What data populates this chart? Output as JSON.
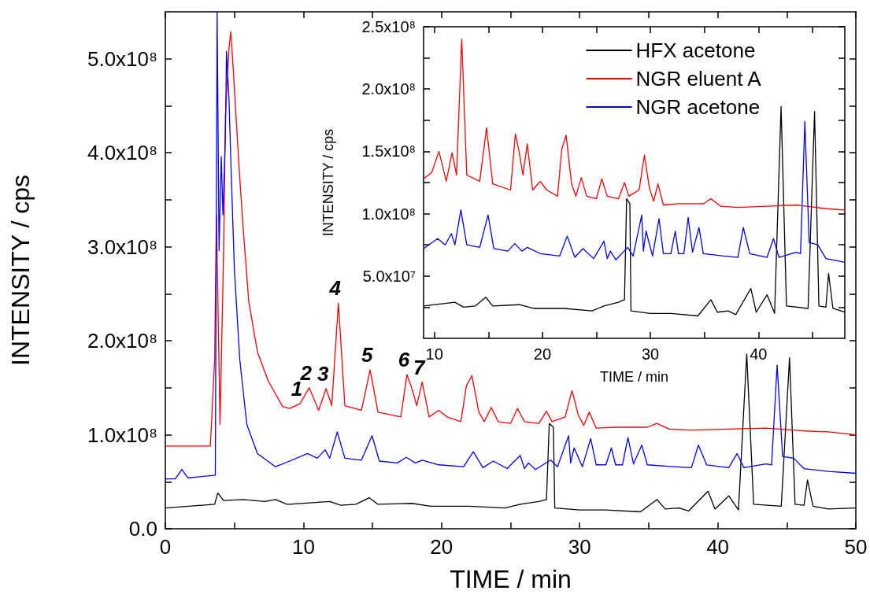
{
  "chart_data": [
    {
      "type": "line",
      "xlabel": "TIME / min",
      "ylabel": "INTENSITY / cps",
      "xlim": [
        0,
        50
      ],
      "xticks": [
        0,
        {
          "value": 5,
          "label": null
        },
        10,
        {
          "value": 15,
          "label": null
        },
        20,
        {
          "value": 25,
          "label": null
        },
        30,
        {
          "value": 35,
          "label": null
        },
        40,
        {
          "value": 45,
          "label": null
        },
        50
      ],
      "ylim": [
        0,
        550000000.0
      ],
      "yticks": [
        {
          "value": 0,
          "label": "0.0"
        },
        {
          "value": 50000000.0,
          "label": null
        },
        {
          "value": 100000000.0,
          "label": "1.0x10⁸"
        },
        {
          "value": 150000000.0,
          "label": null
        },
        {
          "value": 200000000.0,
          "label": "2.0x10⁸"
        },
        {
          "value": 250000000.0,
          "label": null
        },
        {
          "value": 300000000.0,
          "label": "3.0x10⁸"
        },
        {
          "value": 350000000.0,
          "label": null
        },
        {
          "value": 400000000.0,
          "label": "4.0x10⁸"
        },
        {
          "value": 450000000.0,
          "label": null
        },
        {
          "value": 500000000.0,
          "label": "5.0x10⁸"
        }
      ],
      "grid": false,
      "legend": false,
      "annotations": [
        {
          "text": "1",
          "x": 9.75,
          "y": 133000000.0
        },
        {
          "text": "2",
          "x": 10.42,
          "y": 150000000.0
        },
        {
          "text": "3",
          "x": 11.64,
          "y": 149000000.0
        },
        {
          "text": "4",
          "x": 12.53,
          "y": 240000000.0
        },
        {
          "text": "5",
          "x": 14.83,
          "y": 169000000.0
        },
        {
          "text": "6",
          "x": 17.5,
          "y": 164000000.0
        },
        {
          "text": "7",
          "x": 18.6,
          "y": 156000000.0
        }
      ],
      "series": [
        {
          "color": "#000000",
          "x": [
            0,
            3.57,
            3.8,
            4.22,
            5.64,
            7.2,
            7.98,
            8.8,
            9,
            11.9,
            12.7,
            13.8,
            14.76,
            15.4,
            17.86,
            19.2,
            22.0,
            24.6,
            25.7,
            27.05,
            27.6,
            27.8,
            28.1,
            28.2,
            30.0,
            31.9,
            34.4,
            35.6,
            36.2,
            37.2,
            37.9,
            39.3,
            39.8,
            40.8,
            41.5,
            42.1,
            42.6,
            44.6,
            45.2,
            45.6,
            46.25,
            46.5,
            46.9,
            48.0,
            50
          ],
          "values": [
            22000000.0,
            26000000.0,
            38000000.0,
            30000000.0,
            31000000.0,
            29000000.0,
            31000000.0,
            26000000.0,
            26000000.0,
            29000000.0,
            25000000.0,
            26000000.0,
            33000000.0,
            26000000.0,
            27000000.0,
            24000000.0,
            24000000.0,
            22000000.0,
            26000000.0,
            29000000.0,
            31000000.0,
            112000000.0,
            108000000.0,
            22000000.0,
            20000000.0,
            20000000.0,
            18000000.0,
            31000000.0,
            21000000.0,
            22000000.0,
            19000000.0,
            40000000.0,
            21000000.0,
            35000000.0,
            20000000.0,
            186000000.0,
            26000000.0,
            24000000.0,
            182000000.0,
            26000000.0,
            25000000.0,
            52000000.0,
            24000000.0,
            21000000.0,
            22000000.0
          ]
        },
        {
          "color": "#ff0000",
          "x": [
            0,
            3.26,
            3.57,
            3.7,
            3.96,
            4.22,
            4.35,
            4.61,
            4.74,
            4.92,
            5.39,
            5.64,
            6.04,
            6.67,
            7.46,
            8.49,
            9,
            9.75,
            10.42,
            11.1,
            11.64,
            12.05,
            12.53,
            13.0,
            14.2,
            14.83,
            15.4,
            17.05,
            17.5,
            17.86,
            18.2,
            18.6,
            19.1,
            19.8,
            20.4,
            21.4,
            21.8,
            22.2,
            22.7,
            23.1,
            23.6,
            24.1,
            25.0,
            25.5,
            26.0,
            27.05,
            27.6,
            28.0,
            28.95,
            29.45,
            29.9,
            30.3,
            30.7,
            31.2,
            32.7,
            34.9,
            35.6,
            36.5,
            38.1,
            40.8,
            43.5,
            46.3,
            48.0,
            50
          ],
          "values": [
            88000000.0,
            88000000.0,
            180000000.0,
            334000000.0,
            111000000.0,
            296000000.0,
            438000000.0,
            511000000.0,
            529000000.0,
            488000000.0,
            373000000.0,
            319000000.0,
            242000000.0,
            188000000.0,
            157000000.0,
            130000000.0,
            128000000.0,
            133000000.0,
            150000000.0,
            126000000.0,
            149000000.0,
            131000000.0,
            240000000.0,
            131000000.0,
            126000000.0,
            169000000.0,
            124000000.0,
            119000000.0,
            164000000.0,
            149000000.0,
            131000000.0,
            156000000.0,
            119000000.0,
            126000000.0,
            119000000.0,
            114000000.0,
            152000000.0,
            163000000.0,
            124000000.0,
            114000000.0,
            129000000.0,
            114000000.0,
            112000000.0,
            128000000.0,
            114000000.0,
            112000000.0,
            125000000.0,
            114000000.0,
            119000000.0,
            147000000.0,
            121000000.0,
            110000000.0,
            124000000.0,
            107000000.0,
            108000000.0,
            108000000.0,
            112000000.0,
            106000000.0,
            105000000.0,
            106000000.0,
            107000000.0,
            104000000.0,
            103000000.0,
            100000000.0
          ]
        },
        {
          "color": "#0000ff",
          "x": [
            0,
            0.72,
            1.2,
            1.63,
            3.62,
            3.75,
            3.89,
            4.05,
            4.17,
            4.35,
            4.43,
            4.61,
            4.74,
            5.0,
            5.39,
            5.9,
            6.67,
            7.98,
            9,
            10.3,
            11.0,
            11.57,
            11.9,
            12.45,
            13.0,
            14.2,
            14.97,
            15.5,
            16.8,
            17.45,
            18.1,
            18.6,
            19.8,
            21.6,
            22.3,
            23.0,
            23.75,
            24.75,
            25.7,
            26.0,
            26.3,
            26.8,
            27.9,
            28.4,
            29.2,
            29.35,
            29.6,
            30.2,
            30.8,
            31.2,
            31.9,
            32.3,
            32.6,
            33.1,
            33.5,
            33.9,
            34.5,
            34.9,
            36.8,
            38.1,
            38.6,
            39.2,
            40.8,
            41.4,
            41.9,
            43.5,
            43.9,
            44.3,
            44.7,
            45.5,
            46.25,
            48.0,
            50
          ],
          "values": [
            53000000.0,
            53000000.0,
            63000000.0,
            54000000.0,
            57000000.0,
            550000000.0,
            296000000.0,
            396000000.0,
            334000000.0,
            419000000.0,
            508000000.0,
            457000000.0,
            392000000.0,
            276000000.0,
            180000000.0,
            111000000.0,
            80000000.0,
            66000000.0,
            72000000.0,
            80000000.0,
            75000000.0,
            84000000.0,
            75000000.0,
            103000000.0,
            75000000.0,
            73000000.0,
            99000000.0,
            72000000.0,
            70000000.0,
            76000000.0,
            70000000.0,
            73000000.0,
            68000000.0,
            66000000.0,
            82000000.0,
            65000000.0,
            72000000.0,
            64000000.0,
            78000000.0,
            64000000.0,
            70000000.0,
            63000000.0,
            73000000.0,
            66000000.0,
            99000000.0,
            70000000.0,
            86000000.0,
            66000000.0,
            96000000.0,
            68000000.0,
            68000000.0,
            86000000.0,
            68000000.0,
            68000000.0,
            97000000.0,
            69000000.0,
            89000000.0,
            68000000.0,
            66000000.0,
            65000000.0,
            89000000.0,
            68000000.0,
            65000000.0,
            80000000.0,
            65000000.0,
            69000000.0,
            68000000.0,
            174000000.0,
            77000000.0,
            75000000.0,
            64000000.0,
            61000000.0,
            59000000.0
          ]
        }
      ]
    },
    {
      "type": "line",
      "xlabel": "TIME / min",
      "ylabel": "INTENSITY / cps",
      "xlim": [
        9,
        48
      ],
      "xticks": [
        10,
        {
          "value": 15,
          "label": null
        },
        20,
        {
          "value": 25,
          "label": null
        },
        30,
        {
          "value": 35,
          "label": null
        },
        40,
        {
          "value": 45,
          "label": null
        }
      ],
      "ylim": [
        0,
        250000000.0
      ],
      "yticks": [
        {
          "value": 25000000.0,
          "label": null
        },
        {
          "value": 50000000.0,
          "label": "5.0x10⁷"
        },
        {
          "value": 75000000.0,
          "label": null
        },
        {
          "value": 100000000.0,
          "label": "1.0x10⁸"
        },
        {
          "value": 125000000.0,
          "label": null
        },
        {
          "value": 150000000.0,
          "label": "1.5x10⁸"
        },
        {
          "value": 175000000.0,
          "label": null
        },
        {
          "value": 200000000.0,
          "label": "2.0x10⁸"
        },
        {
          "value": 225000000.0,
          "label": null
        },
        {
          "value": 250000000.0,
          "label": "2.5x10⁸"
        }
      ],
      "grid": false,
      "legend": "top right",
      "series": [
        {
          "name": "HFX acetone",
          "color": "#000000",
          "x": [
            9,
            11.9,
            12.7,
            13.8,
            14.76,
            15.4,
            17.86,
            19.2,
            22.0,
            24.6,
            25.7,
            27.05,
            27.6,
            27.8,
            28.1,
            28.2,
            30.0,
            31.9,
            34.4,
            35.6,
            36.2,
            37.2,
            37.9,
            39.3,
            39.8,
            40.8,
            41.5,
            42.1,
            42.6,
            44.6,
            45.2,
            45.6,
            46.25,
            46.5,
            46.9,
            48.0
          ],
          "values": [
            26000000.0,
            29000000.0,
            25000000.0,
            26000000.0,
            33000000.0,
            26000000.0,
            27000000.0,
            24000000.0,
            24000000.0,
            22000000.0,
            26000000.0,
            29000000.0,
            31000000.0,
            112000000.0,
            108000000.0,
            22000000.0,
            20000000.0,
            20000000.0,
            18000000.0,
            31000000.0,
            21000000.0,
            22000000.0,
            19000000.0,
            40000000.0,
            21000000.0,
            35000000.0,
            20000000.0,
            186000000.0,
            26000000.0,
            24000000.0,
            182000000.0,
            26000000.0,
            25000000.0,
            52000000.0,
            24000000.0,
            21000000.0
          ]
        },
        {
          "name": "NGR eluent A",
          "color": "#ff0000",
          "x": [
            9,
            9.75,
            10.42,
            11.1,
            11.64,
            12.05,
            12.53,
            13.0,
            14.2,
            14.83,
            15.4,
            17.05,
            17.5,
            17.86,
            18.2,
            18.6,
            19.1,
            19.8,
            20.4,
            21.4,
            21.8,
            22.2,
            22.7,
            23.1,
            23.6,
            24.1,
            25.0,
            25.5,
            26.0,
            27.05,
            27.6,
            28.0,
            28.95,
            29.45,
            29.9,
            30.3,
            30.7,
            31.2,
            32.7,
            34.9,
            35.6,
            36.5,
            38.1,
            40.8,
            43.5,
            46.3,
            48.0
          ],
          "values": [
            128000000.0,
            133000000.0,
            150000000.0,
            126000000.0,
            149000000.0,
            131000000.0,
            240000000.0,
            131000000.0,
            126000000.0,
            169000000.0,
            124000000.0,
            119000000.0,
            164000000.0,
            149000000.0,
            131000000.0,
            156000000.0,
            119000000.0,
            126000000.0,
            119000000.0,
            114000000.0,
            152000000.0,
            163000000.0,
            124000000.0,
            114000000.0,
            129000000.0,
            114000000.0,
            112000000.0,
            128000000.0,
            114000000.0,
            112000000.0,
            125000000.0,
            114000000.0,
            119000000.0,
            147000000.0,
            121000000.0,
            110000000.0,
            124000000.0,
            107000000.0,
            108000000.0,
            108000000.0,
            112000000.0,
            106000000.0,
            105000000.0,
            106000000.0,
            107000000.0,
            104000000.0,
            103000000.0
          ]
        },
        {
          "name": "NGR acetone",
          "color": "#0000ff",
          "x": [
            9,
            10.3,
            11.0,
            11.57,
            11.9,
            12.45,
            13.0,
            14.2,
            14.97,
            15.5,
            16.8,
            17.45,
            18.1,
            18.6,
            19.8,
            21.6,
            22.3,
            23.0,
            23.75,
            24.75,
            25.7,
            26.0,
            26.3,
            26.8,
            27.9,
            28.4,
            29.2,
            29.35,
            29.6,
            30.2,
            30.8,
            31.2,
            31.9,
            32.3,
            32.6,
            33.1,
            33.5,
            33.9,
            34.5,
            34.9,
            36.8,
            38.1,
            38.6,
            39.2,
            40.8,
            41.4,
            41.9,
            43.5,
            43.9,
            44.3,
            44.7,
            45.5,
            46.25,
            48.0
          ],
          "values": [
            72000000.0,
            80000000.0,
            75000000.0,
            84000000.0,
            75000000.0,
            103000000.0,
            75000000.0,
            73000000.0,
            99000000.0,
            72000000.0,
            70000000.0,
            76000000.0,
            70000000.0,
            73000000.0,
            68000000.0,
            66000000.0,
            82000000.0,
            65000000.0,
            72000000.0,
            64000000.0,
            78000000.0,
            64000000.0,
            70000000.0,
            63000000.0,
            73000000.0,
            66000000.0,
            99000000.0,
            70000000.0,
            86000000.0,
            66000000.0,
            96000000.0,
            68000000.0,
            68000000.0,
            86000000.0,
            68000000.0,
            68000000.0,
            97000000.0,
            69000000.0,
            89000000.0,
            68000000.0,
            66000000.0,
            65000000.0,
            89000000.0,
            68000000.0,
            65000000.0,
            80000000.0,
            65000000.0,
            69000000.0,
            68000000.0,
            174000000.0,
            77000000.0,
            75000000.0,
            64000000.0,
            61000000.0
          ]
        }
      ]
    }
  ]
}
